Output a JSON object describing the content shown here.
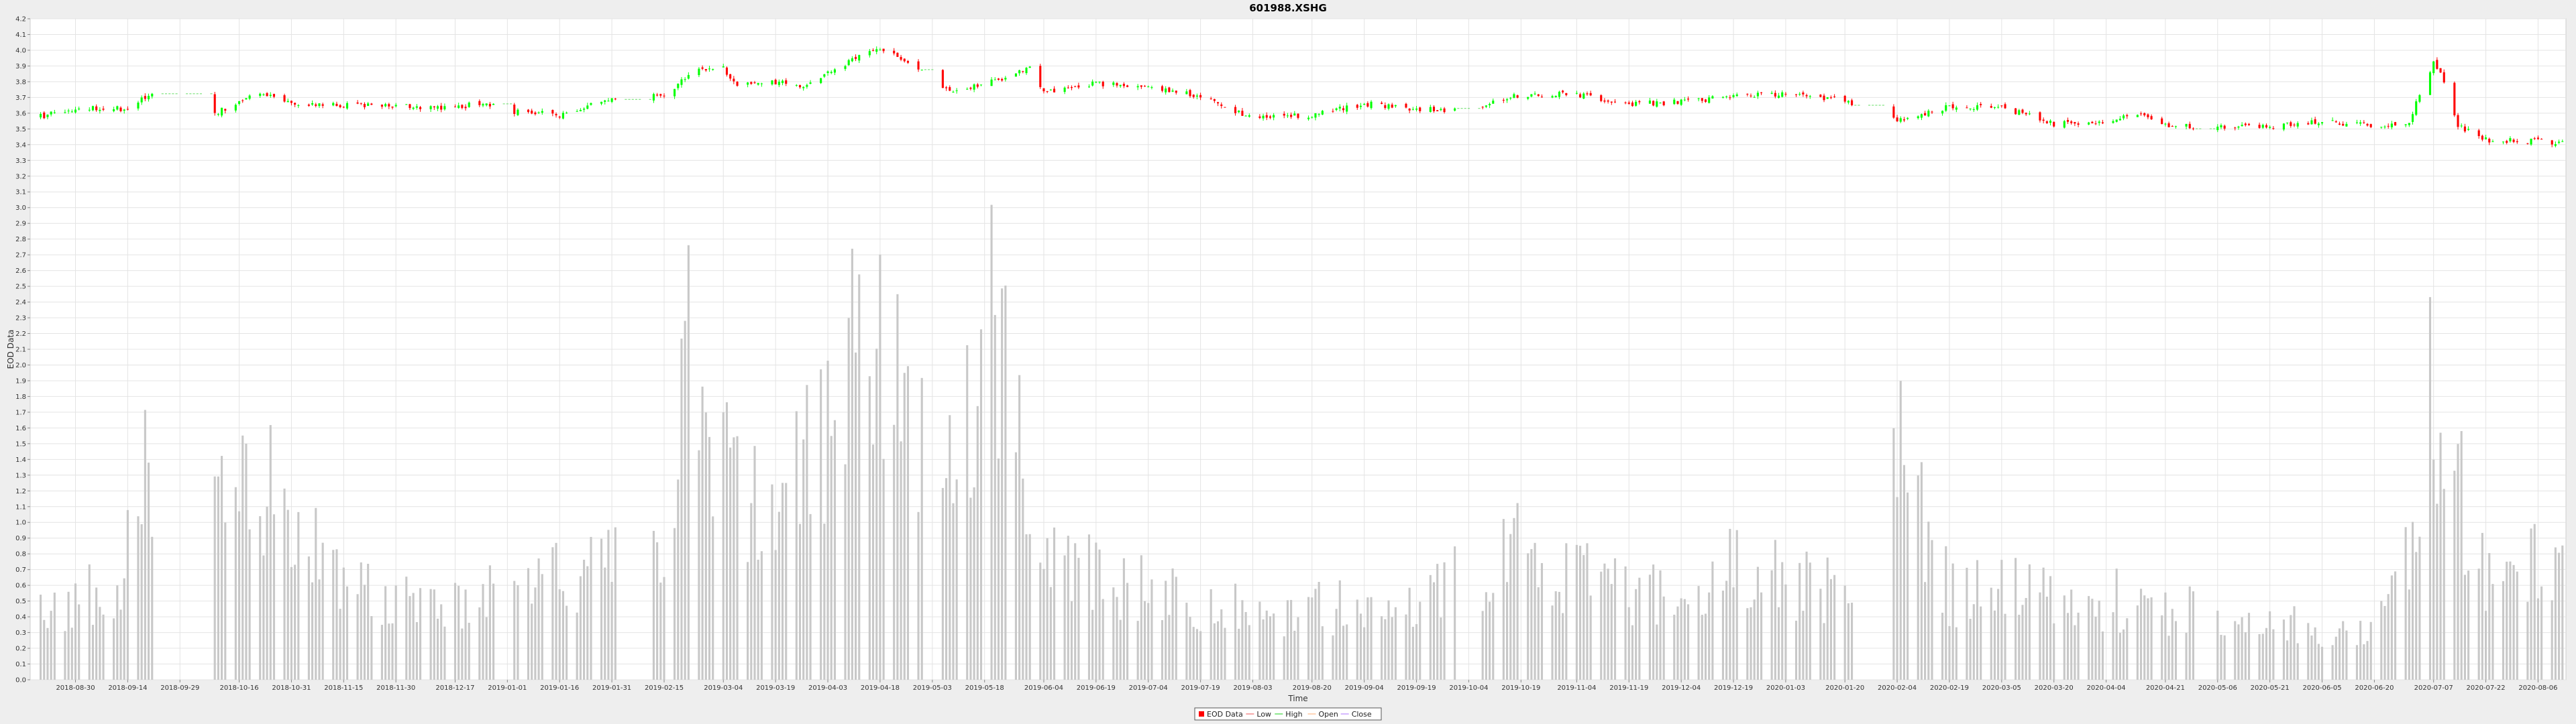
{
  "chart_data": {
    "type": "candlestick",
    "title": "601988.XSHG",
    "xlabel": "Time",
    "ylabel": "EOD Data",
    "ylim": [
      0.0,
      4.2
    ],
    "y_ticks": [
      "0.0",
      "0.1",
      "0.2",
      "0.3",
      "0.4",
      "0.5",
      "0.6",
      "0.7",
      "0.8",
      "0.9",
      "1.0",
      "1.1",
      "1.2",
      "1.3",
      "1.4",
      "1.5",
      "1.6",
      "1.7",
      "1.8",
      "1.9",
      "2.0",
      "2.1",
      "2.2",
      "2.3",
      "2.4",
      "2.5",
      "2.6",
      "2.7",
      "2.8",
      "2.9",
      "3.0",
      "3.1",
      "3.2",
      "3.3",
      "3.4",
      "3.5",
      "3.6",
      "3.7",
      "3.8",
      "3.9",
      "4.0",
      "4.1",
      "4.2"
    ],
    "x_ticks": [
      "2018-08-30",
      "2018-09-14",
      "2018-09-29",
      "2018-10-16",
      "2018-10-31",
      "2018-11-15",
      "2018-11-30",
      "2018-12-17",
      "2019-01-01",
      "2019-01-16",
      "2019-01-31",
      "2019-02-15",
      "2019-03-04",
      "2019-03-19",
      "2019-04-03",
      "2019-04-18",
      "2019-05-03",
      "2019-05-18",
      "2019-06-04",
      "2019-06-19",
      "2019-07-04",
      "2019-07-19",
      "2019-08-03",
      "2019-08-20",
      "2019-09-04",
      "2019-09-19",
      "2019-10-04",
      "2019-10-19",
      "2019-11-04",
      "2019-11-19",
      "2019-12-04",
      "2019-12-19",
      "2020-01-03",
      "2020-01-20",
      "2020-02-04",
      "2020-02-19",
      "2020-03-05",
      "2020-03-20",
      "2020-04-04",
      "2020-04-21",
      "2020-05-06",
      "2020-05-21",
      "2020-06-05",
      "2020-06-20",
      "2020-07-07",
      "2020-07-22",
      "2020-08-06"
    ],
    "x_range": [
      "2018-08-17",
      "2020-08-14"
    ],
    "grid": true,
    "legend_position": "bottom-center",
    "legend": [
      {
        "name": "EOD Data",
        "marker": "box",
        "color": "#ff0000"
      },
      {
        "name": "Low",
        "marker": "line",
        "color": "#f28c8c"
      },
      {
        "name": "High",
        "marker": "line",
        "color": "#66dd66"
      },
      {
        "name": "Open",
        "marker": "line",
        "color": "#ffc8a0"
      },
      {
        "name": "Close",
        "marker": "line",
        "color": "#c8a0ff"
      }
    ],
    "colors": {
      "up": "#00ff00",
      "down": "#ff0000",
      "volume": "#c8c8c8",
      "grid": "#e4e4e4",
      "plot_bg": "#ffffff"
    },
    "price_anchors": [
      [
        "2018-08-20",
        3.58
      ],
      [
        "2018-08-30",
        3.63
      ],
      [
        "2018-09-14",
        3.63
      ],
      [
        "2018-09-20",
        3.72
      ],
      [
        "2018-09-29",
        3.72
      ],
      [
        "2018-10-08",
        3.58
      ],
      [
        "2018-10-16",
        3.68
      ],
      [
        "2018-10-22",
        3.74
      ],
      [
        "2018-10-31",
        3.66
      ],
      [
        "2018-11-15",
        3.65
      ],
      [
        "2018-11-30",
        3.65
      ],
      [
        "2018-12-17",
        3.63
      ],
      [
        "2018-12-25",
        3.67
      ],
      [
        "2019-01-03",
        3.61
      ],
      [
        "2019-01-16",
        3.59
      ],
      [
        "2019-01-31",
        3.69
      ],
      [
        "2019-02-15",
        3.71
      ],
      [
        "2019-02-25",
        3.89
      ],
      [
        "2019-03-04",
        3.88
      ],
      [
        "2019-03-08",
        3.78
      ],
      [
        "2019-03-19",
        3.8
      ],
      [
        "2019-03-28",
        3.77
      ],
      [
        "2019-04-03",
        3.85
      ],
      [
        "2019-04-12",
        3.97
      ],
      [
        "2019-04-18",
        4.02
      ],
      [
        "2019-04-30",
        3.86
      ],
      [
        "2019-05-08",
        3.74
      ],
      [
        "2019-05-18",
        3.79
      ],
      [
        "2019-05-31",
        3.88
      ],
      [
        "2019-06-04",
        3.73
      ],
      [
        "2019-06-19",
        3.79
      ],
      [
        "2019-07-04",
        3.76
      ],
      [
        "2019-07-19",
        3.71
      ],
      [
        "2019-08-03",
        3.57
      ],
      [
        "2019-08-20",
        3.59
      ],
      [
        "2019-09-04",
        3.66
      ],
      [
        "2019-09-19",
        3.63
      ],
      [
        "2019-10-04",
        3.62
      ],
      [
        "2019-10-19",
        3.72
      ],
      [
        "2019-11-04",
        3.72
      ],
      [
        "2019-11-19",
        3.66
      ],
      [
        "2019-12-04",
        3.67
      ],
      [
        "2019-12-19",
        3.71
      ],
      [
        "2020-01-03",
        3.72
      ],
      [
        "2020-01-20",
        3.68
      ],
      [
        "2020-02-04",
        3.56
      ],
      [
        "2020-02-19",
        3.64
      ],
      [
        "2020-03-05",
        3.64
      ],
      [
        "2020-03-20",
        3.53
      ],
      [
        "2020-04-04",
        3.55
      ],
      [
        "2020-04-15",
        3.6
      ],
      [
        "2020-04-21",
        3.52
      ],
      [
        "2020-05-06",
        3.51
      ],
      [
        "2020-05-21",
        3.51
      ],
      [
        "2020-06-05",
        3.55
      ],
      [
        "2020-06-20",
        3.52
      ],
      [
        "2020-06-30",
        3.55
      ],
      [
        "2020-07-07",
        3.93
      ],
      [
        "2020-07-10",
        3.8
      ],
      [
        "2020-07-14",
        3.52
      ],
      [
        "2020-07-22",
        3.43
      ],
      [
        "2020-08-06",
        3.42
      ],
      [
        "2020-08-13",
        3.41
      ]
    ],
    "volume_anchors": [
      [
        "2018-08-20",
        0.45
      ],
      [
        "2018-09-12",
        0.7
      ],
      [
        "2018-09-20",
        1.55
      ],
      [
        "2018-10-01",
        1.0
      ],
      [
        "2018-10-22",
        1.45
      ],
      [
        "2018-11-15",
        0.6
      ],
      [
        "2018-12-17",
        0.55
      ],
      [
        "2019-01-16",
        0.7
      ],
      [
        "2019-02-15",
        0.8
      ],
      [
        "2019-02-22",
        2.75
      ],
      [
        "2019-03-04",
        1.4
      ],
      [
        "2019-03-19",
        1.1
      ],
      [
        "2019-04-18",
        2.5
      ],
      [
        "2019-05-10",
        1.2
      ],
      [
        "2019-05-18",
        2.65
      ],
      [
        "2019-06-04",
        0.8
      ],
      [
        "2019-06-19",
        0.7
      ],
      [
        "2019-08-03",
        0.45
      ],
      [
        "2019-09-19",
        0.55
      ],
      [
        "2019-10-19",
        0.9
      ],
      [
        "2019-11-19",
        0.55
      ],
      [
        "2019-12-19",
        0.75
      ],
      [
        "2020-01-20",
        0.6
      ],
      [
        "2020-02-04",
        1.55
      ],
      [
        "2020-02-19",
        0.6
      ],
      [
        "2020-03-20",
        0.6
      ],
      [
        "2020-04-21",
        0.5
      ],
      [
        "2020-05-21",
        0.35
      ],
      [
        "2020-06-20",
        0.4
      ],
      [
        "2020-07-02",
        0.9
      ],
      [
        "2020-07-07",
        2.15
      ],
      [
        "2020-07-14",
        1.3
      ],
      [
        "2020-07-22",
        0.7
      ],
      [
        "2020-08-13",
        0.8
      ]
    ],
    "gaps": [
      [
        "2018-09-22",
        "2018-10-08"
      ],
      [
        "2018-12-30",
        "2019-01-02"
      ],
      [
        "2019-02-02",
        "2019-02-11"
      ],
      [
        "2019-05-01",
        "2019-05-05"
      ],
      [
        "2019-10-01",
        "2019-10-07"
      ],
      [
        "2020-01-23",
        "2020-02-02"
      ],
      [
        "2020-04-30",
        "2020-05-05"
      ]
    ]
  }
}
